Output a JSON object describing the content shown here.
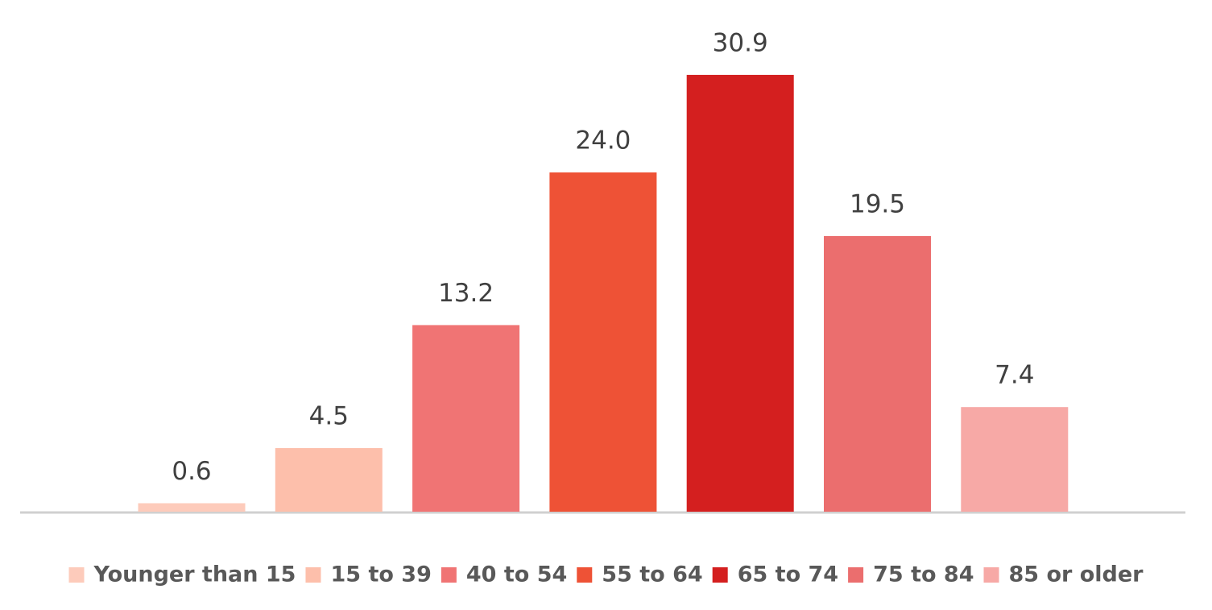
{
  "chart_data": {
    "type": "bar",
    "series": [
      {
        "name": "Younger than 15",
        "color": "#fdcbbb",
        "values": [
          0.6
        ],
        "value_labels": [
          "0.6"
        ]
      },
      {
        "name": "15 to 39",
        "color": "#fdbfab",
        "values": [
          4.5
        ],
        "value_labels": [
          "4.5"
        ]
      },
      {
        "name": "40 to 54",
        "color": "#f07474",
        "values": [
          13.2
        ],
        "value_labels": [
          "13.2"
        ]
      },
      {
        "name": "55 to 64",
        "color": "#ee5236",
        "values": [
          24.0
        ],
        "value_labels": [
          "24.0"
        ]
      },
      {
        "name": "65 to 74",
        "color": "#d41f1f",
        "values": [
          30.9
        ],
        "value_labels": [
          "30.9"
        ]
      },
      {
        "name": "75 to 84",
        "color": "#eb6e6e",
        "values": [
          19.5
        ],
        "value_labels": [
          "19.5"
        ]
      },
      {
        "name": "85 or older",
        "color": "#f7a9a6",
        "values": [
          7.4
        ],
        "value_labels": [
          "7.4"
        ]
      }
    ],
    "ylim": [
      0,
      35
    ],
    "legend": "bottom"
  }
}
